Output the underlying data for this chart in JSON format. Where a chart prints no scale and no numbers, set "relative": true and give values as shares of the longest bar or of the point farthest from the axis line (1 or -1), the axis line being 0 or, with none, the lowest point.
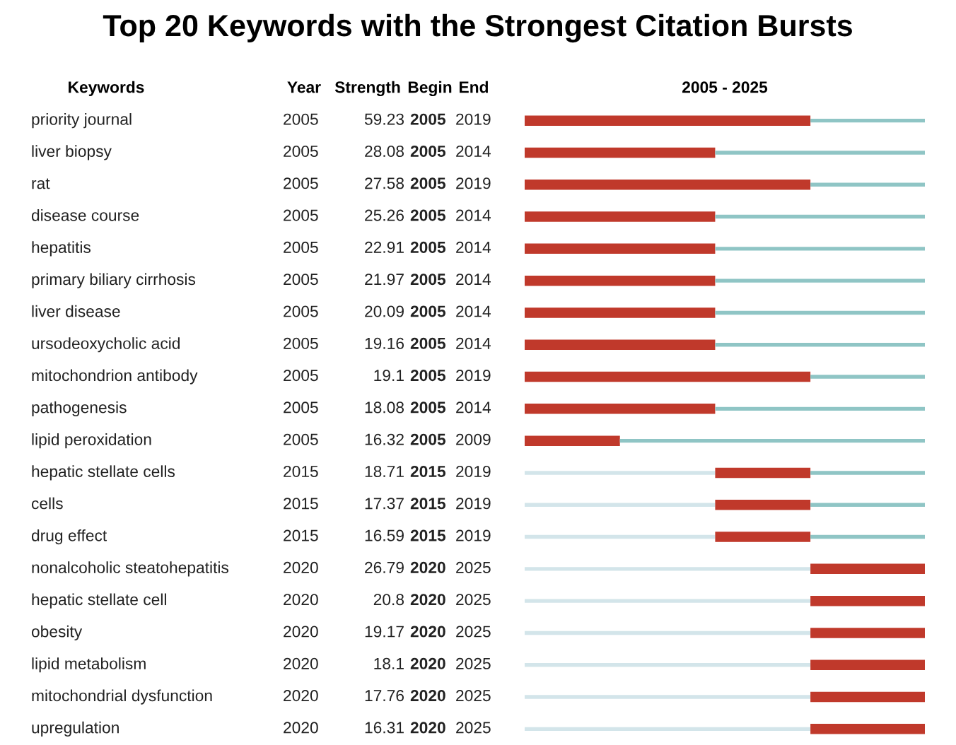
{
  "chart_data": {
    "type": "bar",
    "orientation": "horizontal",
    "stacked": true,
    "title": "Top 20 Keywords with the Strongest Citation Bursts",
    "xlabel": "2005 - 2025",
    "categories": [
      "priority journal",
      "liver biopsy",
      "rat",
      "disease course",
      "hepatitis",
      "primary biliary cirrhosis",
      "liver disease",
      "ursodeoxycholic acid",
      "mitochondrion antibody",
      "pathogenesis",
      "lipid peroxidation",
      "hepatic stellate cells",
      "cells",
      "drug effect",
      "nonalcoholic steatohepatitis",
      "hepatic stellate cell",
      "obesity",
      "lipid metabolism",
      "mitochondrial dysfunction",
      "upregulation"
    ],
    "relative": true,
    "series": [
      {
        "color": "#d3e5ea",
        "values": [
          0,
          0,
          0,
          0,
          0,
          0,
          0,
          0,
          0,
          0,
          0,
          0.476,
          0.476,
          0.476,
          0.714,
          0.714,
          0.714,
          0.714,
          0.714,
          0.714
        ]
      },
      {
        "color": "#c0392b",
        "values": [
          0.714,
          0.476,
          0.714,
          0.476,
          0.476,
          0.476,
          0.476,
          0.476,
          0.714,
          0.476,
          0.238,
          0.238,
          0.238,
          0.238,
          0.286,
          0.286,
          0.286,
          0.286,
          0.286,
          0.286
        ]
      },
      {
        "color": "#8fc5c5",
        "values": [
          0.286,
          0.524,
          0.286,
          0.524,
          0.524,
          0.524,
          0.524,
          0.524,
          0.286,
          0.524,
          0.762,
          0.286,
          0.286,
          0.286,
          0,
          0,
          0,
          0,
          0,
          0
        ]
      }
    ],
    "annotations": [
      "Keywords",
      "Year",
      "Strength",
      "Begin",
      "End",
      "2005",
      "59.23",
      "2005",
      "2019",
      "2005",
      "28.08",
      "2005",
      "2014",
      "2005",
      "27.58",
      "2005",
      "2019",
      "2005",
      "25.26",
      "2005",
      "2014",
      "2005",
      "22.91",
      "2005",
      "2014",
      "2005",
      "21.97",
      "2005",
      "2014",
      "2005",
      "20.09",
      "2005",
      "2014",
      "2005",
      "19.16",
      "2005",
      "2014",
      "2005",
      "19.1",
      "2005",
      "2019",
      "2005",
      "18.08",
      "2005",
      "2014",
      "2005",
      "16.32",
      "2005",
      "2009",
      "2015",
      "18.71",
      "2015",
      "2019",
      "2015",
      "17.37",
      "2015",
      "2019",
      "2015",
      "16.59",
      "2015",
      "2019",
      "2020",
      "26.79",
      "2020",
      "2025",
      "2020",
      "20.8",
      "2020",
      "2025",
      "2020",
      "19.17",
      "2020",
      "2025",
      "2020",
      "18.1",
      "2020",
      "2025",
      "2020",
      "17.76",
      "2020",
      "2025",
      "2020",
      "16.31",
      "2020",
      "2025"
    ]
  }
}
